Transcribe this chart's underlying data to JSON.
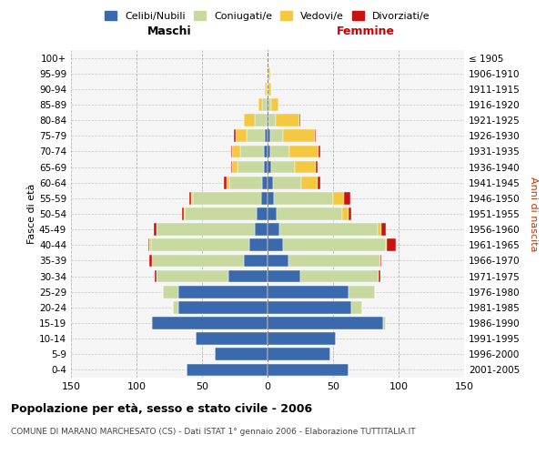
{
  "age_groups": [
    "0-4",
    "5-9",
    "10-14",
    "15-19",
    "20-24",
    "25-29",
    "30-34",
    "35-39",
    "40-44",
    "45-49",
    "50-54",
    "55-59",
    "60-64",
    "65-69",
    "70-74",
    "75-79",
    "80-84",
    "85-89",
    "90-94",
    "95-99",
    "100+"
  ],
  "birth_years": [
    "2001-2005",
    "1996-2000",
    "1991-1995",
    "1986-1990",
    "1981-1985",
    "1976-1980",
    "1971-1975",
    "1966-1970",
    "1961-1965",
    "1956-1960",
    "1951-1955",
    "1946-1950",
    "1941-1945",
    "1936-1940",
    "1931-1935",
    "1926-1930",
    "1921-1925",
    "1916-1920",
    "1911-1915",
    "1906-1910",
    "≤ 1905"
  ],
  "male": {
    "celibi": [
      62,
      40,
      55,
      88,
      68,
      68,
      30,
      18,
      14,
      10,
      8,
      5,
      4,
      3,
      3,
      2,
      1,
      1,
      0,
      0,
      0
    ],
    "coniugati": [
      0,
      0,
      0,
      1,
      4,
      12,
      55,
      70,
      75,
      75,
      55,
      52,
      25,
      20,
      18,
      14,
      9,
      3,
      1,
      1,
      0
    ],
    "vedovi": [
      0,
      0,
      0,
      0,
      0,
      0,
      0,
      0,
      1,
      0,
      1,
      1,
      2,
      4,
      6,
      8,
      8,
      3,
      1,
      0,
      0
    ],
    "divorziati": [
      0,
      0,
      0,
      0,
      0,
      0,
      1,
      2,
      1,
      2,
      1,
      2,
      2,
      1,
      1,
      2,
      0,
      0,
      0,
      0,
      0
    ]
  },
  "female": {
    "nubili": [
      62,
      48,
      52,
      88,
      64,
      62,
      25,
      16,
      12,
      9,
      7,
      5,
      4,
      3,
      2,
      2,
      1,
      1,
      0,
      0,
      0
    ],
    "coniugate": [
      0,
      0,
      0,
      2,
      8,
      20,
      60,
      70,
      78,
      75,
      50,
      45,
      22,
      18,
      15,
      10,
      5,
      2,
      1,
      1,
      0
    ],
    "vedove": [
      0,
      0,
      0,
      0,
      0,
      0,
      0,
      0,
      1,
      3,
      5,
      8,
      12,
      16,
      22,
      24,
      18,
      5,
      2,
      1,
      0
    ],
    "divorziate": [
      0,
      0,
      0,
      0,
      0,
      0,
      1,
      1,
      7,
      3,
      2,
      5,
      2,
      1,
      1,
      1,
      1,
      0,
      0,
      0,
      0
    ]
  },
  "colors": {
    "celibi": "#3a6aad",
    "coniugati": "#c8d9a0",
    "vedovi": "#f5c842",
    "divorziati": "#cc1111"
  },
  "xlim": 150,
  "title": "Popolazione per età, sesso e stato civile - 2006",
  "subtitle": "COMUNE DI MARANO MARCHESATO (CS) - Dati ISTAT 1° gennaio 2006 - Elaborazione TUTTITALIA.IT",
  "ylabel_left": "Fasce di età",
  "ylabel_right": "Anni di nascita",
  "xlabel_left": "Maschi",
  "xlabel_right": "Femmine"
}
